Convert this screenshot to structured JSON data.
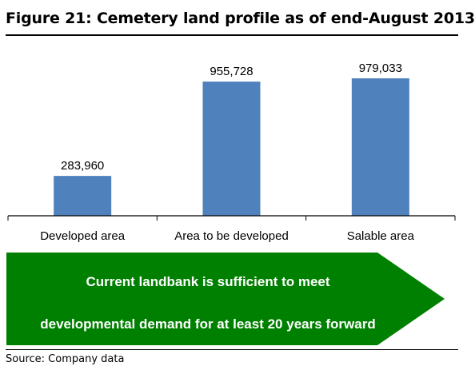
{
  "figure": {
    "title": "Figure 21: Cemetery land profile as of end-August 2013",
    "source": "Source:  Company data"
  },
  "chart_data": {
    "type": "bar",
    "categories": [
      "Developed area",
      "Area to be developed",
      "Salable area"
    ],
    "values": [
      283960,
      955728,
      979033
    ],
    "data_labels": [
      "283,960",
      "955,728",
      "979,033"
    ],
    "ylim": [
      0,
      1150000
    ],
    "grid": false,
    "legend": "none",
    "bar_color": "#4f81bd"
  },
  "banner": {
    "line1": "Current landbank is sufficient to meet",
    "line2": "developmental demand for at least 20 years forward",
    "color": "#008000"
  }
}
